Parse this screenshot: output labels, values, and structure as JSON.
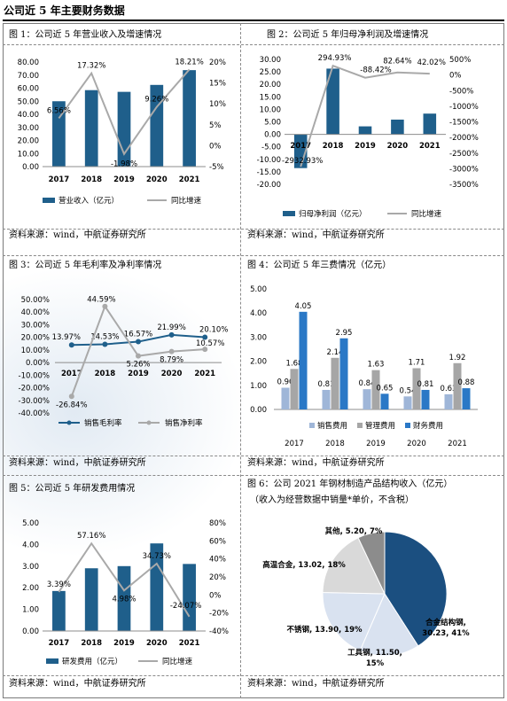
{
  "title": "公司近 5 年主要财务数据",
  "source_text": "资料来源：wind，中航证券研究所",
  "colors": {
    "dark_bar": "#1f5f8b",
    "gray_line": "#a9a9a9",
    "light_blue": "#9fb6d8",
    "mid_gray": "#a6a6a6",
    "bright_blue": "#2a78c6",
    "pie_dark": "#1b4f80",
    "pie_light": "#d9e2f0",
    "pie_gray": "#bfbfbf",
    "pie_dgray": "#8c8c8c"
  },
  "figures": {
    "fig1": {
      "caption": "图 1：公司近 5 年营业收入及增速情况",
      "legend_bar": "营业收入（亿元）",
      "legend_line": "同比增速"
    },
    "fig2": {
      "caption": "图 2：公司近 5 年归母净利润及增速情况",
      "legend_bar": "归母净利润（亿元）",
      "legend_line": "同比增速"
    },
    "fig3": {
      "caption": "图 3：公司近 5 年毛利率及净利率情况",
      "legend_a": "销售毛利率",
      "legend_b": "销售净利率"
    },
    "fig4": {
      "caption": "图 4：公司近 5 年三费情况（亿元）",
      "legend_a": "销售费用",
      "legend_b": "管理费用",
      "legend_c": "财务费用"
    },
    "fig5": {
      "caption": "图 5：公司近 5 年研发费用情况",
      "legend_bar": "研发费用（亿元）",
      "legend_line": "同比增速"
    },
    "fig6": {
      "caption_line1": "图 6：公司 2021 年钢材制造产品结构收入（亿元）",
      "caption_line2": "（收入为经营数据中销量*单价，不含税）"
    }
  },
  "chart_data": [
    {
      "id": "fig1",
      "type": "bar",
      "categories": [
        "2017",
        "2018",
        "2019",
        "2020",
        "2021"
      ],
      "series": [
        {
          "name": "营业收入（亿元）",
          "kind": "bar",
          "values": [
            50.0,
            58.5,
            57.2,
            62.5,
            73.8
          ]
        },
        {
          "name": "同比增速",
          "kind": "line",
          "axis": "right",
          "values": [
            6.56,
            17.32,
            -1.98,
            9.26,
            18.21
          ],
          "labels": [
            "6.56%",
            "17.32%",
            "-1.98%",
            "9.26%",
            "18.21%"
          ]
        }
      ],
      "ylim": [
        0,
        80
      ],
      "yticks": [
        "0.00",
        "10.00",
        "20.00",
        "30.00",
        "40.00",
        "50.00",
        "60.00",
        "70.00",
        "80.00"
      ],
      "y2lim": [
        -5,
        20
      ],
      "y2ticks": [
        "-5%",
        "0%",
        "5%",
        "10%",
        "15%",
        "20%"
      ]
    },
    {
      "id": "fig2",
      "type": "bar",
      "categories": [
        "2017",
        "2018",
        "2019",
        "2020",
        "2021"
      ],
      "series": [
        {
          "name": "归母净利润（亿元）",
          "kind": "bar",
          "values": [
            -13.5,
            26.3,
            3.2,
            5.9,
            8.3
          ]
        },
        {
          "name": "同比增速",
          "kind": "line",
          "axis": "right",
          "values": [
            -2932.93,
            294.93,
            -88.42,
            82.64,
            42.02
          ],
          "labels": [
            "-2932.93%",
            "294.93%",
            "-88.42%",
            "82.64%",
            "42.02%"
          ]
        }
      ],
      "ylim": [
        -20,
        30
      ],
      "yticks": [
        "-20.00",
        "-15.00",
        "-10.00",
        "-5.00",
        "0.00",
        "5.00",
        "10.00",
        "15.00",
        "20.00",
        "25.00",
        "30.00"
      ],
      "y2lim": [
        -3500,
        500
      ],
      "y2ticks": [
        "-3500%",
        "-3000%",
        "-2500%",
        "-2000%",
        "-1500%",
        "-1000%",
        "-500%",
        "0%",
        "500%"
      ]
    },
    {
      "id": "fig3",
      "type": "line",
      "categories": [
        "2017",
        "2018",
        "2019",
        "2020",
        "2021"
      ],
      "series": [
        {
          "name": "销售毛利率",
          "values": [
            13.97,
            14.53,
            16.57,
            21.99,
            20.1
          ],
          "labels": [
            "13.97%",
            "14.53%",
            "16.57%",
            "21.99%",
            "20.10%"
          ]
        },
        {
          "name": "销售净利率",
          "values": [
            -26.84,
            44.59,
            5.26,
            8.79,
            10.57
          ],
          "labels": [
            "-26.84%",
            "44.59%",
            "5.26%",
            "8.79%",
            "10.57%"
          ]
        }
      ],
      "ylim": [
        -40,
        50
      ],
      "yticks": [
        "-40.00%",
        "-30.00%",
        "-20.00%",
        "-10.00%",
        "0.00%",
        "10.00%",
        "20.00%",
        "30.00%",
        "40.00%",
        "50.00%"
      ]
    },
    {
      "id": "fig4",
      "type": "bar",
      "categories": [
        "2017",
        "2018",
        "2019",
        "2020",
        "2021"
      ],
      "series": [
        {
          "name": "销售费用",
          "values": [
            0.9,
            0.81,
            0.84,
            0.54,
            0.63
          ],
          "labels": [
            "0.90",
            "0.81",
            "0.84",
            "0.54",
            "0.63"
          ]
        },
        {
          "name": "管理费用",
          "values": [
            1.68,
            2.14,
            1.63,
            1.71,
            1.92
          ],
          "labels": [
            "1.68",
            "2.14",
            "1.63",
            "1.71",
            "1.92"
          ]
        },
        {
          "name": "财务费用",
          "values": [
            4.05,
            2.95,
            0.65,
            0.81,
            0.88
          ],
          "labels": [
            "4.05",
            "2.95",
            "0.65",
            "0.81",
            "0.88"
          ]
        }
      ],
      "ylim": [
        0,
        5
      ],
      "yticks": [
        "0.00",
        "1.00",
        "2.00",
        "3.00",
        "4.00",
        "5.00"
      ]
    },
    {
      "id": "fig5",
      "type": "bar",
      "categories": [
        "2017",
        "2018",
        "2019",
        "2020",
        "2021"
      ],
      "series": [
        {
          "name": "研发费用（亿元）",
          "kind": "bar",
          "values": [
            1.85,
            2.9,
            3.0,
            4.05,
            3.1
          ]
        },
        {
          "name": "同比增速",
          "kind": "line",
          "axis": "right",
          "values": [
            3.39,
            57.16,
            4.98,
            34.73,
            -24.07
          ],
          "labels": [
            "3.39%",
            "57.16%",
            "4.98%",
            "34.73%",
            "-24.07%"
          ]
        }
      ],
      "ylim": [
        0,
        5
      ],
      "yticks": [
        "0.00",
        "1.00",
        "2.00",
        "3.00",
        "4.00",
        "5.00"
      ],
      "y2lim": [
        -40,
        80
      ],
      "y2ticks": [
        "-40%",
        "-20%",
        "0%",
        "20%",
        "40%",
        "60%",
        "80%"
      ]
    },
    {
      "id": "fig6",
      "type": "pie",
      "slices": [
        {
          "label": "合金结构钢, 30.23, 41%",
          "value": 30.23,
          "color": "#1b4f80"
        },
        {
          "label": "工具钢, 11.50, 15%",
          "value": 11.5,
          "color": "#d9e2f0"
        },
        {
          "label": "不锈钢, 13.90, 19%",
          "value": 13.9,
          "color": "#d9e2f0"
        },
        {
          "label": "高温合金, 13.02, 18%",
          "value": 13.02,
          "color": "#d9d9d9"
        },
        {
          "label": "其他, 5.20, 7%",
          "value": 5.2,
          "color": "#8c8c8c"
        }
      ]
    }
  ]
}
